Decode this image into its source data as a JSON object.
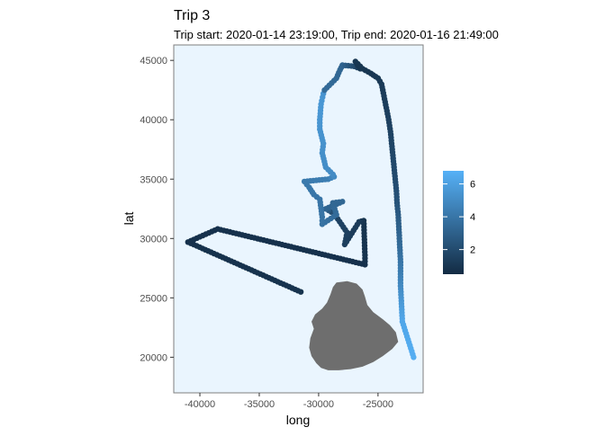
{
  "chart_data": {
    "type": "scatter",
    "title": "Trip 3",
    "subtitle": "Trip start: 2020-01-14 23:19:00, Trip end: 2020-01-16 21:49:00",
    "xlabel": "long",
    "ylabel": "lat",
    "xlim": [
      -42200,
      -21200
    ],
    "ylim": [
      17000,
      46300
    ],
    "xticks": [
      -40000,
      -35000,
      -30000,
      -25000
    ],
    "xtick_labels": [
      "-40000",
      "-35000",
      "-30000",
      "-25000"
    ],
    "yticks": [
      20000,
      25000,
      30000,
      35000,
      40000,
      45000
    ],
    "ytick_labels": [
      "20000",
      "25000",
      "30000",
      "35000",
      "40000",
      "45000"
    ],
    "grid": false,
    "legend": {
      "title": "",
      "placement": "right",
      "range": [
        0.5,
        6.8
      ],
      "breaks": [
        2,
        4,
        6
      ],
      "break_labels": [
        "2",
        "4",
        "6"
      ],
      "low_color": "#132b43",
      "high_color": "#56b1f7"
    },
    "colors": {
      "panel_background": "#eaf5fe",
      "panel_border": "#7f7f7f",
      "land": "#6e6e6e"
    },
    "land_outline": [
      [
        -28500,
        26300
      ],
      [
        -27600,
        26400
      ],
      [
        -26800,
        26200
      ],
      [
        -26300,
        25700
      ],
      [
        -26100,
        25100
      ],
      [
        -25900,
        24400
      ],
      [
        -25400,
        23800
      ],
      [
        -24600,
        23200
      ],
      [
        -24000,
        22700
      ],
      [
        -23500,
        22100
      ],
      [
        -23300,
        21300
      ],
      [
        -23800,
        20700
      ],
      [
        -24600,
        20100
      ],
      [
        -25400,
        19600
      ],
      [
        -26300,
        19200
      ],
      [
        -27300,
        19000
      ],
      [
        -28300,
        18900
      ],
      [
        -29200,
        18900
      ],
      [
        -29800,
        19100
      ],
      [
        -30200,
        19500
      ],
      [
        -30600,
        20100
      ],
      [
        -30800,
        20800
      ],
      [
        -30700,
        21600
      ],
      [
        -30400,
        22400
      ],
      [
        -30600,
        23000
      ],
      [
        -30300,
        23600
      ],
      [
        -29700,
        24100
      ],
      [
        -29300,
        24600
      ],
      [
        -29000,
        25300
      ],
      [
        -28800,
        25900
      ],
      [
        -28500,
        26300
      ]
    ],
    "track_points": [
      [
        -31500,
        25500,
        0.9
      ],
      [
        -41000,
        29700,
        0.8
      ],
      [
        -38500,
        30800,
        0.8
      ],
      [
        -26100,
        27800,
        0.8
      ],
      [
        -26100,
        28600,
        0.9
      ],
      [
        -26200,
        31500,
        0.9
      ],
      [
        -26600,
        31400,
        1.2
      ],
      [
        -27800,
        29500,
        1.4
      ],
      [
        -27600,
        30500,
        1.5
      ],
      [
        -28700,
        32100,
        1.6
      ],
      [
        -29400,
        32500,
        3.2
      ],
      [
        -28000,
        33100,
        3.3
      ],
      [
        -28800,
        33000,
        3.3
      ],
      [
        -28500,
        32000,
        3.5
      ],
      [
        -29700,
        31200,
        3.8
      ],
      [
        -29700,
        31800,
        3.9
      ],
      [
        -29900,
        33300,
        4.0
      ],
      [
        -30400,
        33700,
        4.0
      ],
      [
        -30800,
        34300,
        4.1
      ],
      [
        -31200,
        34800,
        4.2
      ],
      [
        -29200,
        35000,
        4.4
      ],
      [
        -28700,
        35200,
        4.9
      ],
      [
        -28800,
        35400,
        5.0
      ],
      [
        -29400,
        36000,
        5.1
      ],
      [
        -29700,
        37200,
        5.2
      ],
      [
        -29600,
        38000,
        5.3
      ],
      [
        -29900,
        39200,
        5.4
      ],
      [
        -29900,
        40000,
        5.5
      ],
      [
        -29800,
        41300,
        5.6
      ],
      [
        -29600,
        42200,
        5.4
      ],
      [
        -29500,
        42500,
        3.5
      ],
      [
        -28500,
        43500,
        3.4
      ],
      [
        -28200,
        44200,
        3.3
      ],
      [
        -28000,
        44600,
        3.2
      ],
      [
        -27000,
        44500,
        2.0
      ],
      [
        -26500,
        44300,
        1.0
      ],
      [
        -26900,
        44900,
        1.0
      ],
      [
        -26300,
        44300,
        1.0
      ],
      [
        -25600,
        43900,
        1.0
      ],
      [
        -25000,
        43500,
        1.1
      ],
      [
        -24700,
        43000,
        1.2
      ],
      [
        -24500,
        42000,
        1.3
      ],
      [
        -24300,
        41000,
        1.4
      ],
      [
        -24100,
        40000,
        1.5
      ],
      [
        -23950,
        39000,
        1.6
      ],
      [
        -23850,
        38000,
        1.7
      ],
      [
        -23750,
        37000,
        1.8
      ],
      [
        -23650,
        36000,
        1.9
      ],
      [
        -23550,
        35000,
        2.0
      ],
      [
        -23450,
        34000,
        2.2
      ],
      [
        -23400,
        33000,
        2.4
      ],
      [
        -23300,
        32000,
        2.7
      ],
      [
        -23250,
        31000,
        3.0
      ],
      [
        -23200,
        30000,
        3.3
      ],
      [
        -23150,
        29000,
        3.6
      ],
      [
        -23100,
        28000,
        4.0
      ],
      [
        -23100,
        27000,
        4.4
      ],
      [
        -23100,
        26000,
        4.9
      ],
      [
        -23050,
        25000,
        5.4
      ],
      [
        -23000,
        24000,
        5.9
      ],
      [
        -22950,
        23000,
        6.3
      ],
      [
        -22000,
        20000,
        6.6
      ]
    ]
  }
}
